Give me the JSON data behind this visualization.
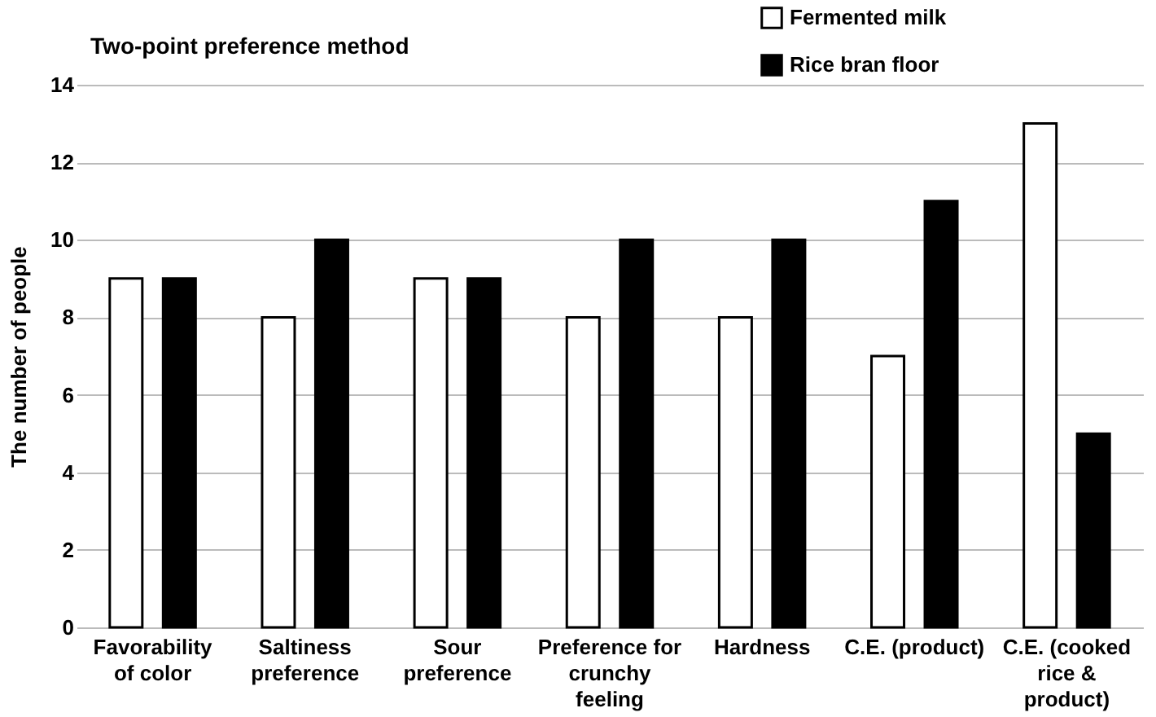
{
  "chart_data": {
    "type": "bar",
    "title": "Two-point preference method",
    "ylabel": "The number of people",
    "categories": [
      "Favorability of color",
      "Saltiness preference",
      "Sour preference",
      "Preference for crunchy feeling",
      "Hardness",
      "C.E. (product)",
      "C.E. (cooked rice & product)"
    ],
    "series": [
      {
        "name": "Fermented milk",
        "color": "#ffffff",
        "values": [
          9,
          8,
          9,
          8,
          8,
          7,
          13
        ]
      },
      {
        "name": "Rice bran floor",
        "color": "#000000",
        "values": [
          9,
          10,
          9,
          10,
          10,
          11,
          5
        ]
      }
    ],
    "ylim": [
      0,
      14
    ],
    "yticks": [
      0,
      2,
      4,
      6,
      8,
      10,
      12,
      14
    ],
    "grid": "y",
    "legend": "top right"
  }
}
